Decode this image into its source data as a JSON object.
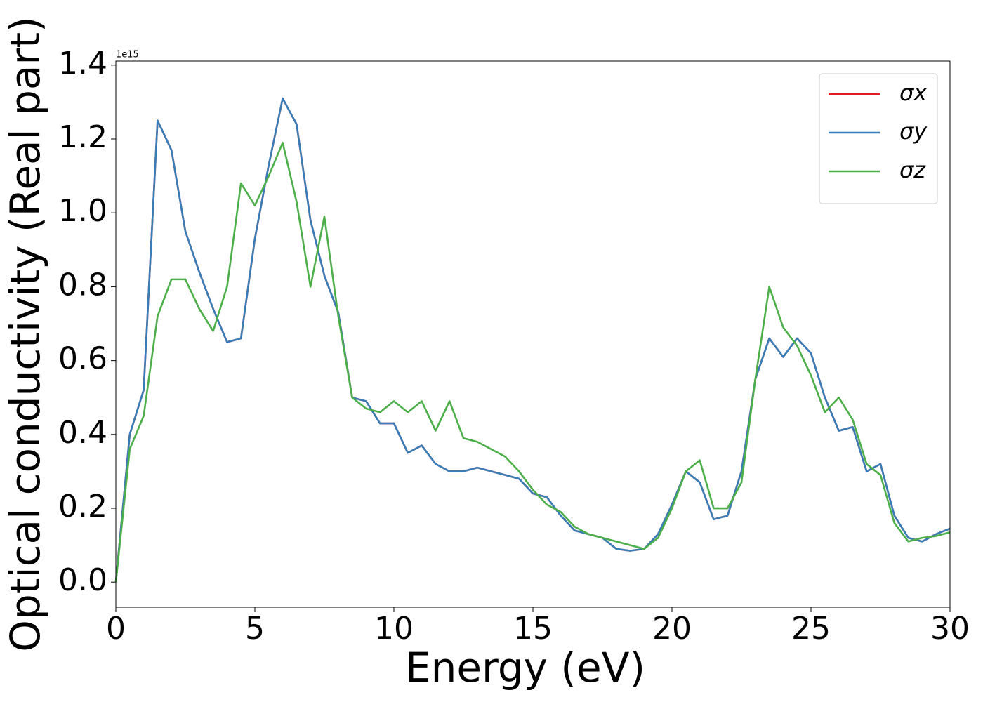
{
  "chart_data": {
    "type": "line",
    "xlabel": "Energy (eV)",
    "ylabel": "Optical conductivity (Real part)",
    "offset_label": "1e15",
    "x": [
      0,
      0.5,
      1,
      1.5,
      2,
      2.5,
      3,
      3.5,
      4,
      4.5,
      5,
      5.5,
      6,
      6.5,
      7,
      7.5,
      8,
      8.5,
      9,
      9.5,
      10,
      10.5,
      11,
      11.5,
      12,
      12.5,
      13,
      13.5,
      14,
      14.5,
      15,
      15.5,
      16,
      16.5,
      17,
      17.5,
      18,
      18.5,
      19,
      19.5,
      20,
      20.5,
      21,
      21.5,
      22,
      22.5,
      23,
      23.5,
      24,
      24.5,
      25,
      25.5,
      26,
      26.5,
      27,
      27.5,
      28,
      28.5,
      29,
      29.5,
      30
    ],
    "series": [
      {
        "name": "σx",
        "color": "#e41a1c",
        "values": [
          0,
          0.4,
          0.52,
          1.25,
          1.17,
          0.95,
          0.84,
          0.74,
          0.65,
          0.66,
          0.93,
          1.13,
          1.31,
          1.24,
          0.98,
          0.83,
          0.73,
          0.5,
          0.49,
          0.43,
          0.43,
          0.35,
          0.37,
          0.32,
          0.3,
          0.3,
          0.31,
          0.3,
          0.29,
          0.28,
          0.24,
          0.23,
          0.18,
          0.14,
          0.13,
          0.12,
          0.09,
          0.085,
          0.09,
          0.13,
          0.21,
          0.3,
          0.27,
          0.17,
          0.18,
          0.3,
          0.55,
          0.66,
          0.61,
          0.66,
          0.62,
          0.5,
          0.41,
          0.42,
          0.3,
          0.32,
          0.18,
          0.12,
          0.11,
          0.13,
          0.145
        ]
      },
      {
        "name": "σy",
        "color": "#377eb8",
        "values": [
          0,
          0.4,
          0.52,
          1.25,
          1.17,
          0.95,
          0.84,
          0.74,
          0.65,
          0.66,
          0.93,
          1.13,
          1.31,
          1.24,
          0.98,
          0.83,
          0.73,
          0.5,
          0.49,
          0.43,
          0.43,
          0.35,
          0.37,
          0.32,
          0.3,
          0.3,
          0.31,
          0.3,
          0.29,
          0.28,
          0.24,
          0.23,
          0.18,
          0.14,
          0.13,
          0.12,
          0.09,
          0.085,
          0.09,
          0.13,
          0.21,
          0.3,
          0.27,
          0.17,
          0.18,
          0.3,
          0.55,
          0.66,
          0.61,
          0.66,
          0.62,
          0.5,
          0.41,
          0.42,
          0.3,
          0.32,
          0.18,
          0.12,
          0.11,
          0.13,
          0.145
        ]
      },
      {
        "name": "σz",
        "color": "#4daf4a",
        "values": [
          0,
          0.36,
          0.45,
          0.72,
          0.82,
          0.82,
          0.74,
          0.68,
          0.8,
          1.08,
          1.02,
          1.1,
          1.19,
          1.03,
          0.8,
          0.99,
          0.72,
          0.5,
          0.47,
          0.46,
          0.49,
          0.46,
          0.49,
          0.41,
          0.49,
          0.39,
          0.38,
          0.36,
          0.34,
          0.3,
          0.25,
          0.21,
          0.19,
          0.15,
          0.13,
          0.12,
          0.11,
          0.1,
          0.09,
          0.12,
          0.2,
          0.3,
          0.33,
          0.2,
          0.2,
          0.27,
          0.55,
          0.8,
          0.69,
          0.64,
          0.56,
          0.46,
          0.5,
          0.44,
          0.32,
          0.29,
          0.16,
          0.11,
          0.12,
          0.125,
          0.135
        ]
      }
    ],
    "xlim": [
      0,
      30
    ],
    "xticks": [
      0,
      5,
      10,
      15,
      20,
      25,
      30
    ],
    "ylim": [
      -0.068,
      1.411
    ],
    "yticks": [
      {
        "value": 0,
        "label": "0.0"
      },
      {
        "value": 0.2,
        "label": "0.2"
      },
      {
        "value": 0.4,
        "label": "0.4"
      },
      {
        "value": 0.6,
        "label": "0.6"
      },
      {
        "value": 0.8,
        "label": "0.8"
      },
      {
        "value": 1.0,
        "label": "1.0"
      },
      {
        "value": 1.2,
        "label": "1.2"
      },
      {
        "value": 1.4,
        "label": "1.4"
      }
    ],
    "grid": false,
    "legend": "upper right"
  }
}
